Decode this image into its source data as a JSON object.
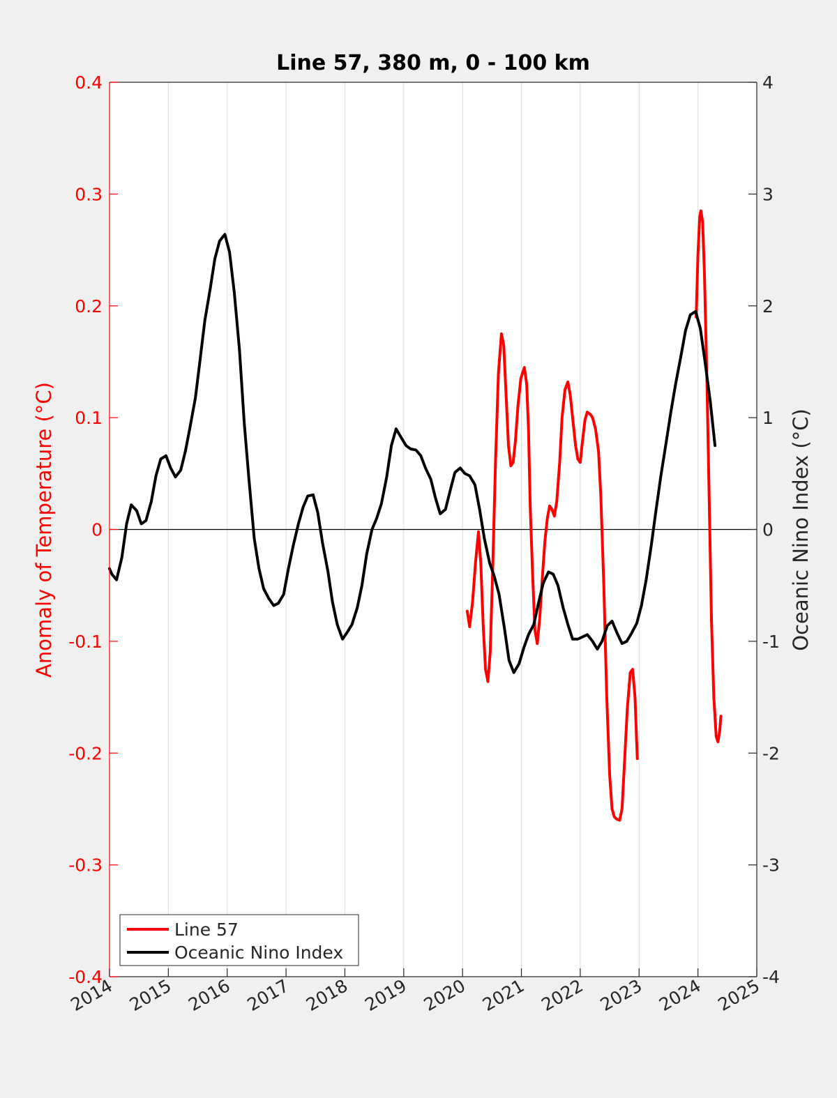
{
  "chart_data": {
    "type": "line",
    "title": "Line 57, 380 m, 0 - 100 km",
    "xlim": [
      2014,
      2025
    ],
    "x_ticks": [
      "2014",
      "2015",
      "2016",
      "2017",
      "2018",
      "2019",
      "2020",
      "2021",
      "2022",
      "2023",
      "2024",
      "2025"
    ],
    "left_axis": {
      "label": "Anomaly of Temperature (°C)",
      "ylim": [
        -0.4,
        0.4
      ],
      "ticks": [
        {
          "v": 0.4,
          "label": "0.4"
        },
        {
          "v": 0.3,
          "label": "0.3"
        },
        {
          "v": 0.2,
          "label": "0.2"
        },
        {
          "v": 0.1,
          "label": "0.1"
        },
        {
          "v": 0,
          "label": "0"
        },
        {
          "v": -0.1,
          "label": "-0.1"
        },
        {
          "v": -0.2,
          "label": "-0.2"
        },
        {
          "v": -0.3,
          "label": "-0.3"
        },
        {
          "v": -0.4,
          "label": "-0.4"
        }
      ],
      "color": "#ff0000"
    },
    "right_axis": {
      "label": "Oceanic Nino Index (°C)",
      "ylim": [
        -4,
        4
      ],
      "ticks": [
        {
          "v": 4,
          "label": "4"
        },
        {
          "v": 3,
          "label": "3"
        },
        {
          "v": 2,
          "label": "2"
        },
        {
          "v": 1,
          "label": "1"
        },
        {
          "v": 0,
          "label": "0"
        },
        {
          "v": -1,
          "label": "-1"
        },
        {
          "v": -2,
          "label": "-2"
        },
        {
          "v": -3,
          "label": "-3"
        },
        {
          "v": -4,
          "label": "-4"
        }
      ],
      "color": "#262626"
    },
    "grid": "vertical",
    "zero_line": true,
    "legend": {
      "position": "bottom-left",
      "entries": [
        {
          "label": "Line 57",
          "color": "#ff0000"
        },
        {
          "label": "Oceanic Nino Index",
          "color": "#000000"
        }
      ]
    },
    "series": [
      {
        "name": "Line 57",
        "axis": "left",
        "color": "#ff0000",
        "segments": [
          [
            [
              2020.08,
              -0.073
            ],
            [
              2020.12,
              -0.087
            ],
            [
              2020.17,
              -0.065
            ],
            [
              2020.22,
              -0.03
            ],
            [
              2020.27,
              -0.002
            ],
            [
              2020.31,
              -0.03
            ],
            [
              2020.35,
              -0.085
            ],
            [
              2020.39,
              -0.125
            ],
            [
              2020.43,
              -0.136
            ],
            [
              2020.47,
              -0.11
            ],
            [
              2020.51,
              -0.04
            ],
            [
              2020.56,
              0.06
            ],
            [
              2020.61,
              0.14
            ],
            [
              2020.66,
              0.175
            ],
            [
              2020.7,
              0.165
            ],
            [
              2020.74,
              0.12
            ],
            [
              2020.78,
              0.075
            ],
            [
              2020.82,
              0.057
            ],
            [
              2020.86,
              0.06
            ],
            [
              2020.9,
              0.08
            ],
            [
              2020.94,
              0.11
            ],
            [
              2020.99,
              0.135
            ],
            [
              2021.05,
              0.145
            ],
            [
              2021.09,
              0.13
            ],
            [
              2021.12,
              0.09
            ],
            [
              2021.15,
              0.02
            ],
            [
              2021.19,
              -0.04
            ],
            [
              2021.23,
              -0.09
            ],
            [
              2021.27,
              -0.102
            ],
            [
              2021.31,
              -0.08
            ],
            [
              2021.36,
              -0.04
            ],
            [
              2021.4,
              -0.01
            ],
            [
              2021.44,
              0.01
            ],
            [
              2021.48,
              0.021
            ],
            [
              2021.52,
              0.018
            ],
            [
              2021.56,
              0.012
            ],
            [
              2021.6,
              0.025
            ],
            [
              2021.65,
              0.06
            ],
            [
              2021.69,
              0.1
            ],
            [
              2021.74,
              0.125
            ],
            [
              2021.79,
              0.132
            ],
            [
              2021.83,
              0.12
            ],
            [
              2021.88,
              0.095
            ],
            [
              2021.92,
              0.075
            ],
            [
              2021.96,
              0.063
            ],
            [
              2022.0,
              0.06
            ],
            [
              2022.04,
              0.08
            ],
            [
              2022.08,
              0.098
            ],
            [
              2022.12,
              0.105
            ],
            [
              2022.17,
              0.103
            ],
            [
              2022.21,
              0.1
            ],
            [
              2022.26,
              0.09
            ],
            [
              2022.31,
              0.07
            ],
            [
              2022.35,
              0.03
            ],
            [
              2022.4,
              -0.05
            ],
            [
              2022.45,
              -0.15
            ],
            [
              2022.5,
              -0.22
            ],
            [
              2022.54,
              -0.25
            ],
            [
              2022.58,
              -0.257
            ],
            [
              2022.62,
              -0.259
            ],
            [
              2022.67,
              -0.26
            ],
            [
              2022.71,
              -0.25
            ],
            [
              2022.75,
              -0.21
            ],
            [
              2022.8,
              -0.16
            ],
            [
              2022.85,
              -0.128
            ],
            [
              2022.89,
              -0.125
            ],
            [
              2022.93,
              -0.15
            ],
            [
              2022.97,
              -0.205
            ]
          ],
          [
            [
              2023.97,
              0.19
            ],
            [
              2024.0,
              0.245
            ],
            [
              2024.03,
              0.28
            ],
            [
              2024.05,
              0.285
            ],
            [
              2024.08,
              0.275
            ],
            [
              2024.11,
              0.23
            ],
            [
              2024.15,
              0.14
            ],
            [
              2024.19,
              0.03
            ],
            [
              2024.23,
              -0.08
            ],
            [
              2024.27,
              -0.15
            ],
            [
              2024.31,
              -0.185
            ],
            [
              2024.34,
              -0.19
            ],
            [
              2024.37,
              -0.18
            ],
            [
              2024.39,
              -0.167
            ]
          ]
        ]
      },
      {
        "name": "Oceanic Nino Index",
        "axis": "right",
        "color": "#000000",
        "segments": [
          [
            [
              2014.0,
              -0.35
            ],
            [
              2014.04,
              -0.4
            ],
            [
              2014.12,
              -0.45
            ],
            [
              2014.21,
              -0.25
            ],
            [
              2014.29,
              0.05
            ],
            [
              2014.37,
              0.22
            ],
            [
              2014.46,
              0.17
            ],
            [
              2014.54,
              0.05
            ],
            [
              2014.62,
              0.08
            ],
            [
              2014.71,
              0.25
            ],
            [
              2014.79,
              0.48
            ],
            [
              2014.87,
              0.63
            ],
            [
              2014.96,
              0.66
            ],
            [
              2015.04,
              0.55
            ],
            [
              2015.12,
              0.47
            ],
            [
              2015.21,
              0.53
            ],
            [
              2015.29,
              0.7
            ],
            [
              2015.37,
              0.92
            ],
            [
              2015.46,
              1.18
            ],
            [
              2015.54,
              1.52
            ],
            [
              2015.62,
              1.87
            ],
            [
              2015.71,
              2.15
            ],
            [
              2015.79,
              2.42
            ],
            [
              2015.87,
              2.58
            ],
            [
              2015.96,
              2.64
            ],
            [
              2016.04,
              2.48
            ],
            [
              2016.12,
              2.12
            ],
            [
              2016.21,
              1.6
            ],
            [
              2016.29,
              0.95
            ],
            [
              2016.37,
              0.45
            ],
            [
              2016.46,
              -0.08
            ],
            [
              2016.54,
              -0.35
            ],
            [
              2016.62,
              -0.53
            ],
            [
              2016.71,
              -0.62
            ],
            [
              2016.79,
              -0.68
            ],
            [
              2016.87,
              -0.66
            ],
            [
              2016.96,
              -0.58
            ],
            [
              2017.04,
              -0.35
            ],
            [
              2017.12,
              -0.15
            ],
            [
              2017.21,
              0.05
            ],
            [
              2017.29,
              0.2
            ],
            [
              2017.37,
              0.3
            ],
            [
              2017.46,
              0.31
            ],
            [
              2017.54,
              0.15
            ],
            [
              2017.62,
              -0.12
            ],
            [
              2017.71,
              -0.37
            ],
            [
              2017.79,
              -0.65
            ],
            [
              2017.87,
              -0.85
            ],
            [
              2017.96,
              -0.98
            ],
            [
              2018.04,
              -0.92
            ],
            [
              2018.12,
              -0.85
            ],
            [
              2018.21,
              -0.7
            ],
            [
              2018.29,
              -0.5
            ],
            [
              2018.37,
              -0.22
            ],
            [
              2018.46,
              0.0
            ],
            [
              2018.54,
              0.1
            ],
            [
              2018.62,
              0.23
            ],
            [
              2018.71,
              0.47
            ],
            [
              2018.79,
              0.75
            ],
            [
              2018.87,
              0.9
            ],
            [
              2018.96,
              0.82
            ],
            [
              2019.04,
              0.75
            ],
            [
              2019.12,
              0.72
            ],
            [
              2019.21,
              0.71
            ],
            [
              2019.29,
              0.66
            ],
            [
              2019.37,
              0.55
            ],
            [
              2019.46,
              0.45
            ],
            [
              2019.54,
              0.28
            ],
            [
              2019.62,
              0.14
            ],
            [
              2019.71,
              0.18
            ],
            [
              2019.79,
              0.35
            ],
            [
              2019.87,
              0.51
            ],
            [
              2019.96,
              0.55
            ],
            [
              2020.04,
              0.5
            ],
            [
              2020.12,
              0.48
            ],
            [
              2020.21,
              0.4
            ],
            [
              2020.29,
              0.18
            ],
            [
              2020.37,
              -0.08
            ],
            [
              2020.46,
              -0.3
            ],
            [
              2020.54,
              -0.42
            ],
            [
              2020.62,
              -0.58
            ],
            [
              2020.71,
              -0.88
            ],
            [
              2020.79,
              -1.17
            ],
            [
              2020.87,
              -1.28
            ],
            [
              2020.96,
              -1.2
            ],
            [
              2021.04,
              -1.06
            ],
            [
              2021.12,
              -0.94
            ],
            [
              2021.21,
              -0.85
            ],
            [
              2021.29,
              -0.66
            ],
            [
              2021.37,
              -0.48
            ],
            [
              2021.46,
              -0.38
            ],
            [
              2021.54,
              -0.4
            ],
            [
              2021.62,
              -0.5
            ],
            [
              2021.71,
              -0.7
            ],
            [
              2021.79,
              -0.85
            ],
            [
              2021.87,
              -0.98
            ],
            [
              2021.96,
              -0.98
            ],
            [
              2022.04,
              -0.96
            ],
            [
              2022.12,
              -0.94
            ],
            [
              2022.21,
              -1.0
            ],
            [
              2022.29,
              -1.07
            ],
            [
              2022.37,
              -1.0
            ],
            [
              2022.46,
              -0.86
            ],
            [
              2022.54,
              -0.82
            ],
            [
              2022.62,
              -0.92
            ],
            [
              2022.71,
              -1.02
            ],
            [
              2022.79,
              -1.0
            ],
            [
              2022.87,
              -0.93
            ],
            [
              2022.96,
              -0.84
            ],
            [
              2023.04,
              -0.68
            ],
            [
              2023.12,
              -0.45
            ],
            [
              2023.21,
              -0.13
            ],
            [
              2023.29,
              0.18
            ],
            [
              2023.37,
              0.48
            ],
            [
              2023.46,
              0.78
            ],
            [
              2023.54,
              1.05
            ],
            [
              2023.62,
              1.3
            ],
            [
              2023.71,
              1.55
            ],
            [
              2023.79,
              1.78
            ],
            [
              2023.87,
              1.92
            ],
            [
              2023.96,
              1.95
            ],
            [
              2024.04,
              1.8
            ],
            [
              2024.12,
              1.5
            ],
            [
              2024.21,
              1.14
            ],
            [
              2024.29,
              0.75
            ]
          ]
        ]
      }
    ]
  }
}
